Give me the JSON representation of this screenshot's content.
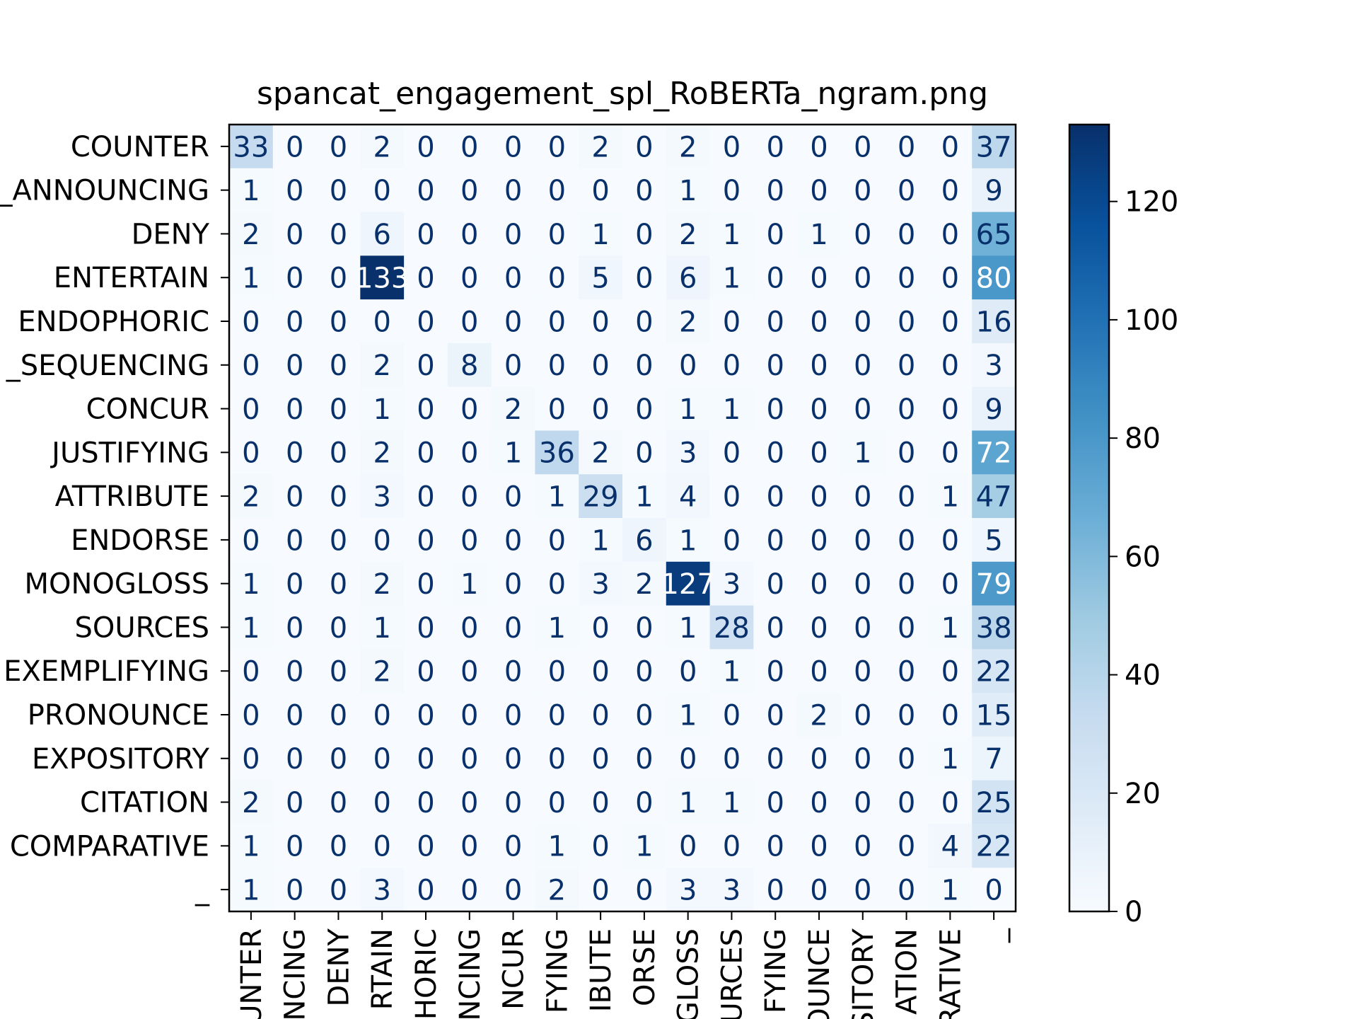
{
  "chart_data": {
    "type": "heatmap",
    "title": "spancat_engagement_spl_RoBERTa_ngram.png",
    "colormap": "Blues",
    "row_labels": [
      "COUNTER",
      "_ANNOUNCING",
      "DENY",
      "ENTERTAIN",
      "ENDOPHORIC",
      "_SEQUENCING",
      "CONCUR",
      "JUSTIFYING",
      "ATTRIBUTE",
      "ENDORSE",
      "MONOGLOSS",
      "SOURCES",
      "EXEMPLIFYING",
      "PRONOUNCE",
      "EXPOSITORY",
      "CITATION",
      "COMPARATIVE",
      "_"
    ],
    "col_labels": [
      "UNTER",
      "NCING",
      "DENY",
      "RTAIN",
      "HORIC",
      "NCING",
      "NCUR",
      "FYING",
      "IBUTE",
      "ORSE",
      "GLOSS",
      "URCES",
      "FYING",
      "OUNCE",
      "SITORY",
      "ATION",
      "RATIVE",
      "_"
    ],
    "matrix": [
      [
        33,
        0,
        0,
        2,
        0,
        0,
        0,
        0,
        2,
        0,
        2,
        0,
        0,
        0,
        0,
        0,
        0,
        37
      ],
      [
        1,
        0,
        0,
        0,
        0,
        0,
        0,
        0,
        0,
        0,
        1,
        0,
        0,
        0,
        0,
        0,
        0,
        9
      ],
      [
        2,
        0,
        0,
        6,
        0,
        0,
        0,
        0,
        1,
        0,
        2,
        1,
        0,
        1,
        0,
        0,
        0,
        65
      ],
      [
        1,
        0,
        0,
        133,
        0,
        0,
        0,
        0,
        5,
        0,
        6,
        1,
        0,
        0,
        0,
        0,
        0,
        80
      ],
      [
        0,
        0,
        0,
        0,
        0,
        0,
        0,
        0,
        0,
        0,
        2,
        0,
        0,
        0,
        0,
        0,
        0,
        16
      ],
      [
        0,
        0,
        0,
        2,
        0,
        8,
        0,
        0,
        0,
        0,
        0,
        0,
        0,
        0,
        0,
        0,
        0,
        3
      ],
      [
        0,
        0,
        0,
        1,
        0,
        0,
        2,
        0,
        0,
        0,
        1,
        1,
        0,
        0,
        0,
        0,
        0,
        9
      ],
      [
        0,
        0,
        0,
        2,
        0,
        0,
        1,
        36,
        2,
        0,
        3,
        0,
        0,
        0,
        1,
        0,
        0,
        72
      ],
      [
        2,
        0,
        0,
        3,
        0,
        0,
        0,
        1,
        29,
        1,
        4,
        0,
        0,
        0,
        0,
        0,
        1,
        47
      ],
      [
        0,
        0,
        0,
        0,
        0,
        0,
        0,
        0,
        1,
        6,
        1,
        0,
        0,
        0,
        0,
        0,
        0,
        5
      ],
      [
        1,
        0,
        0,
        2,
        0,
        1,
        0,
        0,
        3,
        2,
        127,
        3,
        0,
        0,
        0,
        0,
        0,
        79
      ],
      [
        1,
        0,
        0,
        1,
        0,
        0,
        0,
        1,
        0,
        0,
        1,
        28,
        0,
        0,
        0,
        0,
        1,
        38
      ],
      [
        0,
        0,
        0,
        2,
        0,
        0,
        0,
        0,
        0,
        0,
        0,
        1,
        0,
        0,
        0,
        0,
        0,
        22
      ],
      [
        0,
        0,
        0,
        0,
        0,
        0,
        0,
        0,
        0,
        0,
        1,
        0,
        0,
        2,
        0,
        0,
        0,
        15
      ],
      [
        0,
        0,
        0,
        0,
        0,
        0,
        0,
        0,
        0,
        0,
        0,
        0,
        0,
        0,
        0,
        0,
        1,
        7
      ],
      [
        2,
        0,
        0,
        0,
        0,
        0,
        0,
        0,
        0,
        0,
        1,
        1,
        0,
        0,
        0,
        0,
        0,
        25
      ],
      [
        1,
        0,
        0,
        0,
        0,
        0,
        0,
        1,
        0,
        1,
        0,
        0,
        0,
        0,
        0,
        0,
        4,
        22
      ],
      [
        1,
        0,
        0,
        3,
        0,
        0,
        0,
        2,
        0,
        0,
        3,
        3,
        0,
        0,
        0,
        0,
        1,
        0
      ]
    ],
    "colorbar": {
      "range": [
        0,
        133
      ],
      "ticks": [
        0,
        20,
        40,
        60,
        80,
        100,
        120
      ]
    },
    "grid": false
  }
}
